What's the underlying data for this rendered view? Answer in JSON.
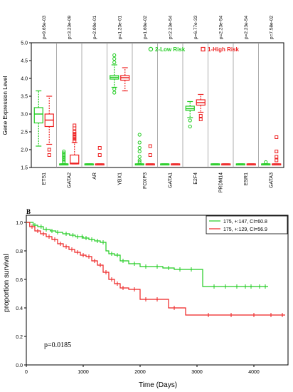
{
  "chart_data": [
    {
      "type": "box",
      "ylabel": "Gene Expression Level",
      "ylim": [
        1.5,
        5.0
      ],
      "yticks": [
        "1.5",
        "2.0",
        "2.5",
        "3.0",
        "3.5",
        "4.0",
        "4.5",
        "5.0"
      ],
      "categories": [
        "ETS1",
        "GATA2",
        "AR",
        "YBX1",
        "FOXP3",
        "GATA1",
        "E2F4",
        "PRDM14",
        "ESR1",
        "GATA3"
      ],
      "pvalues": [
        "p=9.65e-03",
        "p=3.23e-09",
        "p=2.00e-01",
        "p=1.23e-01",
        "p=1.60e-02",
        "p=2.23e-54",
        "p=6.77e-33",
        "p=2.23e-54",
        "p=2.23e-54",
        "p=7.58e-02"
      ],
      "legend": {
        "placement": "top-right",
        "entries": [
          "2-Low Risk",
          "1-High Risk"
        ]
      },
      "colors": {
        "low": "#22cc22",
        "high": "#ee2222"
      },
      "series": [
        {
          "name": "2-Low Risk",
          "boxes": [
            {
              "q1": 2.75,
              "median": 3.0,
              "q3": 3.18,
              "wlo": 2.1,
              "whi": 3.65,
              "outliers": []
            },
            {
              "q1": 1.6,
              "median": 1.6,
              "q3": 1.6,
              "wlo": 1.6,
              "whi": 1.6,
              "outliers": [
                1.65,
                1.7,
                1.75,
                1.8,
                1.85,
                1.9,
                1.95
              ]
            },
            {
              "q1": 1.6,
              "median": 1.6,
              "q3": 1.6,
              "wlo": 1.6,
              "whi": 1.6,
              "outliers": []
            },
            {
              "q1": 3.98,
              "median": 4.03,
              "q3": 4.08,
              "wlo": 3.75,
              "whi": 4.38,
              "outliers": [
                3.6,
                3.7,
                4.45,
                4.55,
                4.65
              ]
            },
            {
              "q1": 1.6,
              "median": 1.6,
              "q3": 1.6,
              "wlo": 1.6,
              "whi": 1.6,
              "outliers": [
                1.65,
                1.7,
                1.8,
                1.95,
                2.05,
                2.2,
                2.42
              ]
            },
            {
              "q1": 1.6,
              "median": 1.6,
              "q3": 1.6,
              "wlo": 1.6,
              "whi": 1.6,
              "outliers": []
            },
            {
              "q1": 3.1,
              "median": 3.15,
              "q3": 3.22,
              "wlo": 2.9,
              "whi": 3.35,
              "outliers": [
                2.65,
                2.82
              ]
            },
            {
              "q1": 1.6,
              "median": 1.6,
              "q3": 1.6,
              "wlo": 1.6,
              "whi": 1.6,
              "outliers": []
            },
            {
              "q1": 1.6,
              "median": 1.6,
              "q3": 1.6,
              "wlo": 1.6,
              "whi": 1.6,
              "outliers": []
            },
            {
              "q1": 1.6,
              "median": 1.6,
              "q3": 1.6,
              "wlo": 1.6,
              "whi": 1.6,
              "outliers": [
                1.65
              ]
            }
          ]
        },
        {
          "name": "1-High Risk",
          "boxes": [
            {
              "q1": 2.65,
              "median": 2.83,
              "q3": 3.0,
              "wlo": 2.15,
              "whi": 3.5,
              "outliers": [
                2.0,
                1.85
              ]
            },
            {
              "q1": 1.6,
              "median": 1.62,
              "q3": 1.85,
              "wlo": 1.6,
              "whi": 2.2,
              "outliers": [
                2.25,
                2.3,
                2.35,
                2.4,
                2.45,
                2.5,
                2.6,
                2.68
              ]
            },
            {
              "q1": 1.6,
              "median": 1.6,
              "q3": 1.6,
              "wlo": 1.6,
              "whi": 1.6,
              "outliers": [
                1.85,
                2.05
              ]
            },
            {
              "q1": 3.95,
              "median": 4.02,
              "q3": 4.08,
              "wlo": 3.65,
              "whi": 4.3,
              "outliers": []
            },
            {
              "q1": 1.6,
              "median": 1.6,
              "q3": 1.6,
              "wlo": 1.6,
              "whi": 1.6,
              "outliers": [
                1.85,
                2.1
              ]
            },
            {
              "q1": 1.6,
              "median": 1.6,
              "q3": 1.6,
              "wlo": 1.6,
              "whi": 1.6,
              "outliers": []
            },
            {
              "q1": 3.25,
              "median": 3.32,
              "q3": 3.4,
              "wlo": 3.05,
              "whi": 3.55,
              "outliers": [
                2.85,
                2.95
              ]
            },
            {
              "q1": 1.6,
              "median": 1.6,
              "q3": 1.6,
              "wlo": 1.6,
              "whi": 1.6,
              "outliers": []
            },
            {
              "q1": 1.6,
              "median": 1.6,
              "q3": 1.6,
              "wlo": 1.6,
              "whi": 1.6,
              "outliers": []
            },
            {
              "q1": 1.6,
              "median": 1.6,
              "q3": 1.6,
              "wlo": 1.6,
              "whi": 1.6,
              "outliers": [
                1.7,
                1.8,
                1.95,
                2.35
              ]
            }
          ]
        }
      ]
    },
    {
      "type": "line",
      "panel_label": "B",
      "xlabel": "Time (Days)",
      "ylabel": "proportion survival",
      "xlim": [
        0,
        4600
      ],
      "ylim": [
        0,
        1.05
      ],
      "xticks": [
        "0",
        "1000",
        "2000",
        "3000",
        "4000"
      ],
      "yticks": [
        "0.0",
        "0.2",
        "0.4",
        "0.6",
        "0.8",
        "1.0"
      ],
      "annotation": "p=0.0185",
      "legend": {
        "placement": "top-right",
        "entries": [
          "175, +:147, CI=60.8",
          "175, +:129, CI=56.9"
        ]
      },
      "colors": {
        "green": "#22cc22",
        "red": "#ee2222"
      },
      "series": [
        {
          "color": "green",
          "x": [
            0,
            120,
            200,
            300,
            420,
            520,
            640,
            760,
            860,
            1000,
            1100,
            1200,
            1300,
            1400,
            1450,
            1550,
            1650,
            1800,
            2000,
            2200,
            2400,
            2600,
            2800,
            3000,
            3100,
            3600,
            4250
          ],
          "y": [
            1.0,
            0.98,
            0.97,
            0.95,
            0.94,
            0.93,
            0.92,
            0.91,
            0.9,
            0.89,
            0.88,
            0.87,
            0.86,
            0.8,
            0.78,
            0.77,
            0.73,
            0.71,
            0.69,
            0.69,
            0.68,
            0.67,
            0.67,
            0.67,
            0.55,
            0.55,
            0.55
          ],
          "censor_x": [
            150,
            260,
            350,
            450,
            550,
            700,
            820,
            900,
            980,
            1050,
            1150,
            1250,
            1350,
            1500,
            1600,
            1700,
            1900,
            2100,
            2300,
            2500,
            2700,
            2900,
            3300,
            3500,
            3700,
            3850,
            3950,
            4100,
            4200
          ]
        },
        {
          "color": "red",
          "x": [
            0,
            60,
            150,
            250,
            350,
            450,
            550,
            650,
            750,
            850,
            950,
            1050,
            1150,
            1250,
            1350,
            1450,
            1550,
            1650,
            1800,
            2000,
            2500,
            2800,
            3000,
            4550
          ],
          "y": [
            1.0,
            0.97,
            0.94,
            0.92,
            0.9,
            0.88,
            0.85,
            0.83,
            0.81,
            0.79,
            0.77,
            0.76,
            0.73,
            0.7,
            0.65,
            0.6,
            0.57,
            0.54,
            0.53,
            0.46,
            0.4,
            0.35,
            0.35,
            0.35
          ],
          "censor_x": [
            100,
            200,
            300,
            400,
            500,
            600,
            700,
            800,
            900,
            1000,
            1100,
            1200,
            1300,
            1400,
            1500,
            1600,
            1700,
            1900,
            2100,
            2300,
            2600,
            3200,
            3600,
            4000,
            4300,
            4500
          ]
        }
      ]
    }
  ]
}
